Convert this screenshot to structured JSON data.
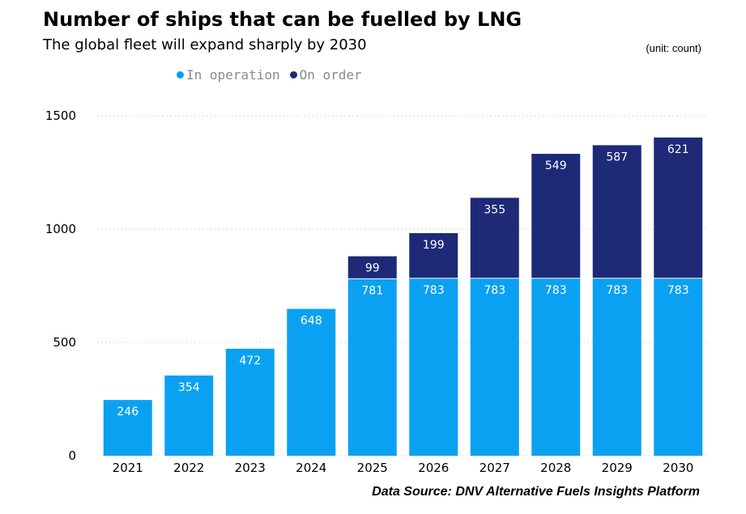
{
  "header": {
    "title": "Number of ships that can be fuelled by LNG",
    "subtitle": "The global fleet will expand sharply by 2030",
    "unit": "(unit: count)"
  },
  "legend": [
    {
      "label": "In operation",
      "color": "#0ba1f2"
    },
    {
      "label": "On order",
      "color": "#1e2a78"
    }
  ],
  "source": "Data Source: DNV Alternative Fuels Insights Platform",
  "chart_data": {
    "type": "bar",
    "stacked": true,
    "categories": [
      "2021",
      "2022",
      "2023",
      "2024",
      "2025",
      "2026",
      "2027",
      "2028",
      "2029",
      "2030"
    ],
    "series": [
      {
        "name": "In operation",
        "color": "#0ba1f2",
        "values": [
          246,
          354,
          472,
          648,
          781,
          783,
          783,
          783,
          783,
          783
        ]
      },
      {
        "name": "On order",
        "color": "#1e2a78",
        "values": [
          0,
          0,
          0,
          0,
          99,
          199,
          355,
          549,
          587,
          621
        ]
      }
    ],
    "title": "Number of ships that can be fuelled by LNG",
    "subtitle": "The global fleet will expand sharply by 2030",
    "xlabel": "",
    "ylabel": "",
    "ylim": [
      0,
      1500
    ],
    "yticks": [
      "0",
      "500",
      "1000",
      "1500"
    ],
    "grid": true,
    "legend_position": "top-left"
  }
}
